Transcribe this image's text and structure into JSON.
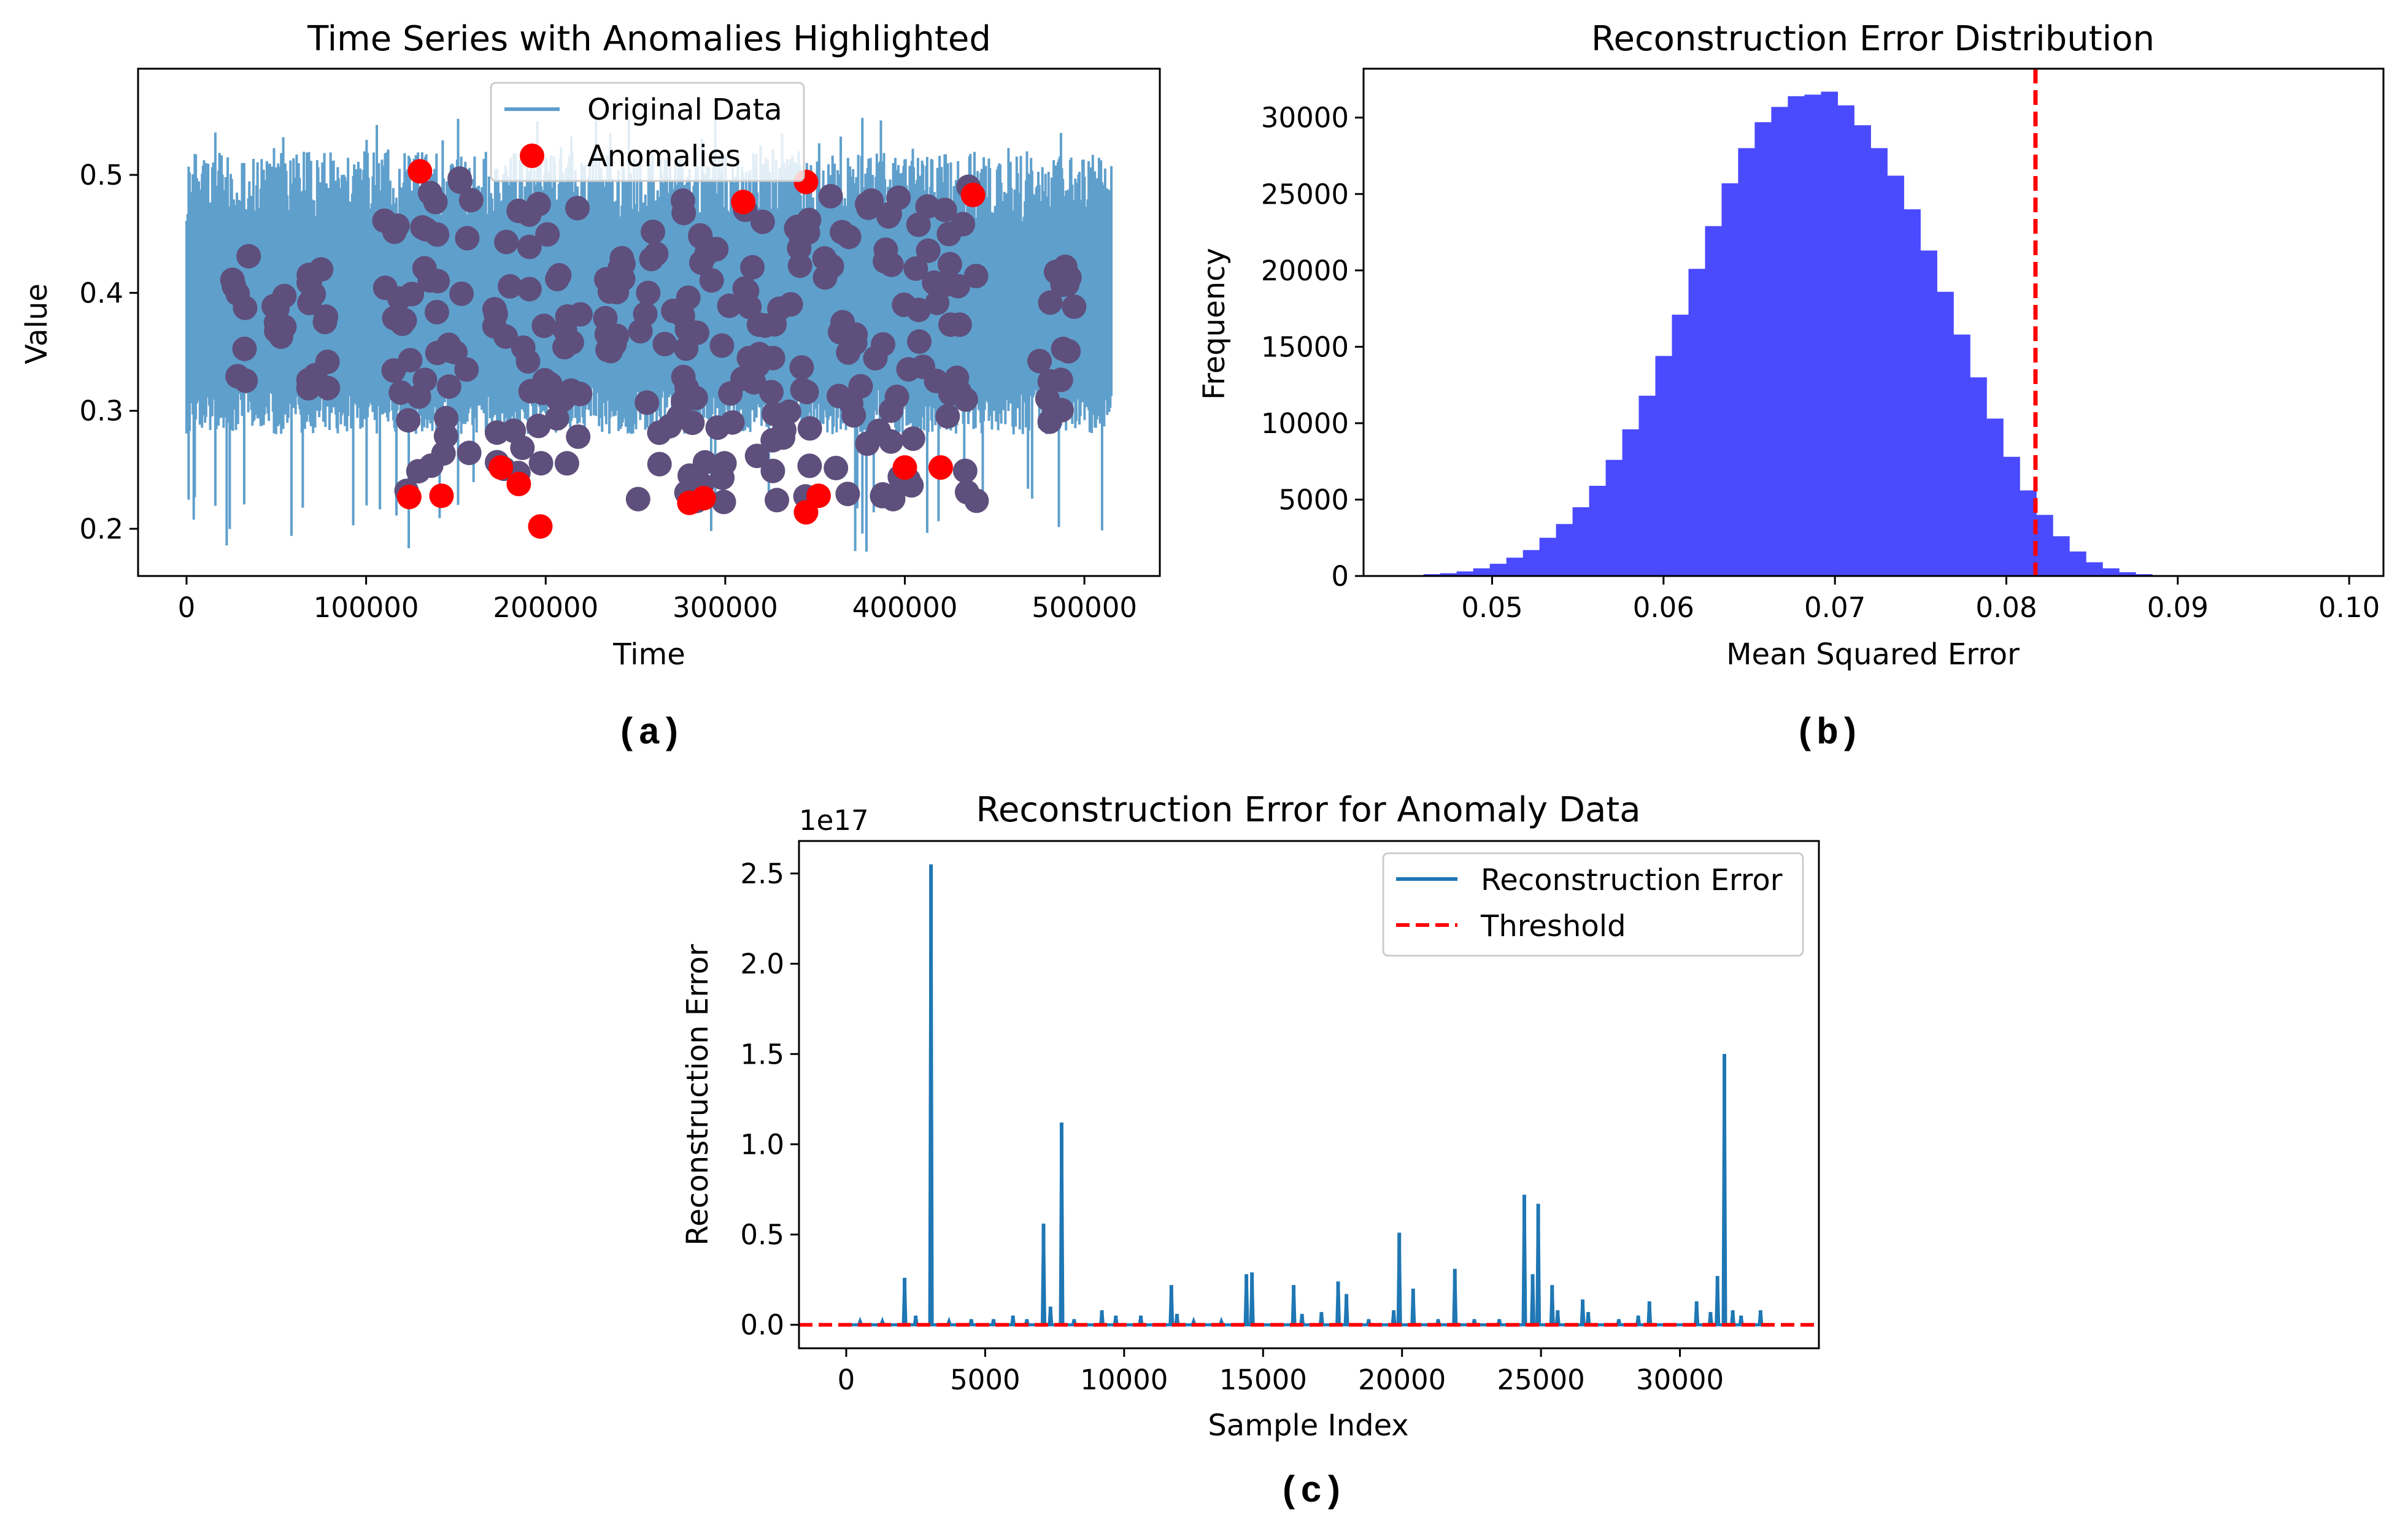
{
  "colors": {
    "line": "#1f77b4",
    "line_light": "#5f9fcc",
    "anomaly": "#ff0000",
    "overlap": "#5e4f7c",
    "hist": "#4a4aff",
    "threshold": "#ff0000"
  },
  "captions": {
    "a": "(a)",
    "b": "(b)",
    "c": "(c)"
  },
  "chart_data": [
    {
      "id": "a",
      "type": "line",
      "title": "Time Series with Anomalies Highlighted",
      "xlabel": "Time",
      "ylabel": "Value",
      "xlim": [
        -27000,
        542000
      ],
      "ylim": [
        0.16,
        0.59
      ],
      "xticks": [
        0,
        100000,
        200000,
        300000,
        400000,
        500000
      ],
      "xtick_labels": [
        "0",
        "100000",
        "200000",
        "300000",
        "400000",
        "500000"
      ],
      "yticks": [
        0.2,
        0.3,
        0.4,
        0.5
      ],
      "ytick_labels": [
        "0.2",
        "0.3",
        "0.4",
        "0.5"
      ],
      "legend": {
        "position": "top-center",
        "entries": [
          "Original Data",
          "Anomalies"
        ]
      },
      "series": [
        {
          "name": "Original Data",
          "kind": "line",
          "x_range": [
            0,
            515000
          ],
          "band_low": [
            0.28,
            0.32
          ],
          "band_high": [
            0.46,
            0.52
          ],
          "extremes": [
            0.18,
            0.55
          ]
        },
        {
          "name": "Anomalies",
          "kind": "scatter",
          "clusters": [
            {
              "x": [
                25000,
                35000
              ],
              "y": [
                0.32,
                0.44
              ]
            },
            {
              "x": [
                45000,
                55000
              ],
              "y": [
                0.36,
                0.4
              ]
            },
            {
              "x": [
                65000,
                80000
              ],
              "y": [
                0.3,
                0.45
              ]
            },
            {
              "x": [
                110000,
                160000
              ],
              "y": [
                0.23,
                0.5
              ]
            },
            {
              "x": [
                170000,
                220000
              ],
              "y": [
                0.24,
                0.48
              ]
            },
            {
              "x": [
                230000,
                245000
              ],
              "y": [
                0.35,
                0.43
              ]
            },
            {
              "x": [
                250000,
                440000
              ],
              "y": [
                0.22,
                0.49
              ]
            },
            {
              "x": [
                475000,
                495000
              ],
              "y": [
                0.29,
                0.43
              ]
            }
          ],
          "points": [
            {
              "x": 124000,
              "y": 0.227
            },
            {
              "x": 142000,
              "y": 0.228
            },
            {
              "x": 197000,
              "y": 0.202
            },
            {
              "x": 175000,
              "y": 0.252
            },
            {
              "x": 185000,
              "y": 0.238
            },
            {
              "x": 130000,
              "y": 0.503
            },
            {
              "x": 280000,
              "y": 0.222
            },
            {
              "x": 288000,
              "y": 0.226
            },
            {
              "x": 345000,
              "y": 0.214
            },
            {
              "x": 352000,
              "y": 0.228
            },
            {
              "x": 310000,
              "y": 0.477
            },
            {
              "x": 345000,
              "y": 0.494
            },
            {
              "x": 400000,
              "y": 0.252
            },
            {
              "x": 420000,
              "y": 0.252
            },
            {
              "x": 438000,
              "y": 0.483
            }
          ]
        }
      ]
    },
    {
      "id": "b",
      "type": "bar",
      "title": "Reconstruction Error Distribution",
      "xlabel": "Mean Squared Error",
      "ylabel": "Frequency",
      "xlim": [
        0.0425,
        0.102
      ],
      "ylim": [
        0,
        33200
      ],
      "xticks": [
        0.05,
        0.06,
        0.07,
        0.08,
        0.09,
        0.1
      ],
      "xtick_labels": [
        "0.05",
        "0.06",
        "0.07",
        "0.08",
        "0.09",
        "0.10"
      ],
      "yticks": [
        0,
        5000,
        10000,
        15000,
        20000,
        25000,
        30000
      ],
      "ytick_labels": [
        "0",
        "5000",
        "10000",
        "15000",
        "20000",
        "25000",
        "30000"
      ],
      "threshold": 0.0817,
      "bin_start": 0.046,
      "bin_width": 0.000966,
      "values": [
        120,
        180,
        300,
        500,
        800,
        1200,
        1700,
        2500,
        3400,
        4500,
        5900,
        7600,
        9600,
        11800,
        14400,
        17100,
        20100,
        22900,
        25700,
        28000,
        29700,
        30700,
        31400,
        31500,
        31700,
        30800,
        29500,
        28000,
        26200,
        24000,
        21300,
        18600,
        15800,
        13000,
        10300,
        7800,
        5600,
        4000,
        2600,
        1600,
        900,
        500,
        250,
        120,
        50,
        20,
        8,
        3
      ]
    },
    {
      "id": "c",
      "type": "line",
      "title": "Reconstruction Error for Anomaly Data",
      "xlabel": "Sample Index",
      "ylabel": "Reconstruction Error",
      "y_offset_label": "1e17",
      "xlim": [
        -1700,
        35000
      ],
      "ylim": [
        -0.13,
        2.68
      ],
      "xticks": [
        0,
        5000,
        10000,
        15000,
        20000,
        25000,
        30000
      ],
      "xtick_labels": [
        "0",
        "5000",
        "10000",
        "15000",
        "20000",
        "25000",
        "30000"
      ],
      "yticks": [
        0.0,
        0.5,
        1.0,
        1.5,
        2.0,
        2.5
      ],
      "ytick_labels": [
        "0.0",
        "0.5",
        "1.0",
        "1.5",
        "2.0",
        "2.5"
      ],
      "legend": {
        "position": "top-right",
        "entries": [
          "Reconstruction Error",
          "Threshold"
        ]
      },
      "threshold": 0.0,
      "x_range": [
        0,
        33000
      ],
      "spikes": [
        {
          "x": 500,
          "y": 0.02
        },
        {
          "x": 1300,
          "y": 0.02
        },
        {
          "x": 2100,
          "y": 0.26
        },
        {
          "x": 2500,
          "y": 0.05
        },
        {
          "x": 3050,
          "y": 2.55
        },
        {
          "x": 3700,
          "y": 0.02
        },
        {
          "x": 4500,
          "y": 0.03
        },
        {
          "x": 5300,
          "y": 0.03
        },
        {
          "x": 6000,
          "y": 0.05
        },
        {
          "x": 6500,
          "y": 0.03
        },
        {
          "x": 7100,
          "y": 0.56
        },
        {
          "x": 7350,
          "y": 0.1
        },
        {
          "x": 7750,
          "y": 1.12
        },
        {
          "x": 8200,
          "y": 0.03
        },
        {
          "x": 9200,
          "y": 0.08
        },
        {
          "x": 9700,
          "y": 0.05
        },
        {
          "x": 10600,
          "y": 0.05
        },
        {
          "x": 11700,
          "y": 0.22
        },
        {
          "x": 11900,
          "y": 0.06
        },
        {
          "x": 12500,
          "y": 0.02
        },
        {
          "x": 13500,
          "y": 0.02
        },
        {
          "x": 14400,
          "y": 0.28
        },
        {
          "x": 14600,
          "y": 0.29
        },
        {
          "x": 16100,
          "y": 0.22
        },
        {
          "x": 16400,
          "y": 0.06
        },
        {
          "x": 17100,
          "y": 0.07
        },
        {
          "x": 17700,
          "y": 0.24
        },
        {
          "x": 18000,
          "y": 0.17
        },
        {
          "x": 18800,
          "y": 0.03
        },
        {
          "x": 19700,
          "y": 0.08
        },
        {
          "x": 19900,
          "y": 0.51
        },
        {
          "x": 20400,
          "y": 0.2
        },
        {
          "x": 21300,
          "y": 0.03
        },
        {
          "x": 21900,
          "y": 0.31
        },
        {
          "x": 22600,
          "y": 0.03
        },
        {
          "x": 23500,
          "y": 0.03
        },
        {
          "x": 24400,
          "y": 0.72
        },
        {
          "x": 24700,
          "y": 0.28
        },
        {
          "x": 24900,
          "y": 0.67
        },
        {
          "x": 25400,
          "y": 0.22
        },
        {
          "x": 25600,
          "y": 0.08
        },
        {
          "x": 26500,
          "y": 0.14
        },
        {
          "x": 26700,
          "y": 0.07
        },
        {
          "x": 27800,
          "y": 0.03
        },
        {
          "x": 28500,
          "y": 0.05
        },
        {
          "x": 28900,
          "y": 0.13
        },
        {
          "x": 30600,
          "y": 0.13
        },
        {
          "x": 31100,
          "y": 0.07
        },
        {
          "x": 31350,
          "y": 0.27
        },
        {
          "x": 31600,
          "y": 1.5
        },
        {
          "x": 31900,
          "y": 0.08
        },
        {
          "x": 32200,
          "y": 0.05
        },
        {
          "x": 32900,
          "y": 0.08
        }
      ]
    }
  ]
}
